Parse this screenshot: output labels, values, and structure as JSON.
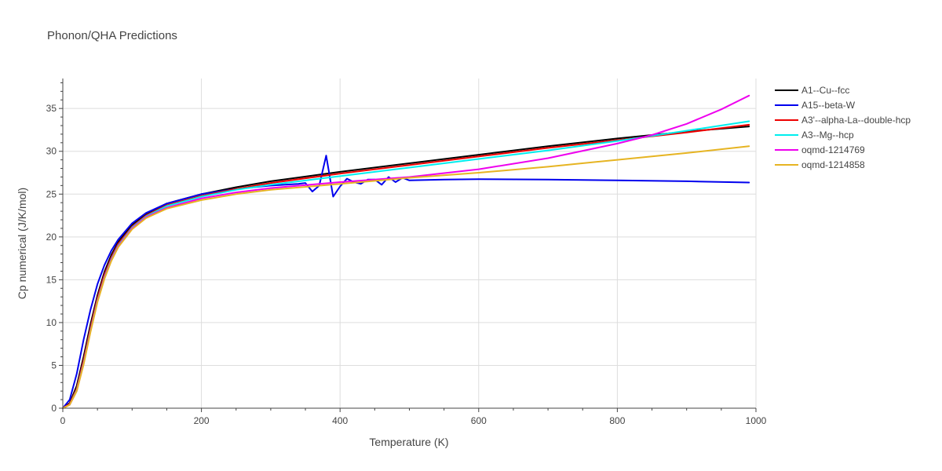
{
  "chart_data": {
    "type": "line",
    "title": "Phonon/QHA Predictions",
    "xlabel": "Temperature (K)",
    "ylabel": "Cp numerical (J/K/mol)",
    "xlim": [
      0,
      1000
    ],
    "ylim": [
      0,
      38.5
    ],
    "xticks": [
      0,
      200,
      400,
      600,
      800,
      1000
    ],
    "yticks": [
      0,
      5,
      10,
      15,
      20,
      25,
      30,
      35
    ],
    "grid": true,
    "legend_position": "right",
    "series": [
      {
        "name": "A1--Cu--fcc",
        "color": "#000000",
        "points": [
          [
            0,
            0
          ],
          [
            10,
            0.6
          ],
          [
            20,
            2.6
          ],
          [
            30,
            6.0
          ],
          [
            40,
            9.8
          ],
          [
            50,
            13.2
          ],
          [
            60,
            15.9
          ],
          [
            70,
            17.9
          ],
          [
            80,
            19.4
          ],
          [
            100,
            21.4
          ],
          [
            120,
            22.7
          ],
          [
            150,
            23.9
          ],
          [
            200,
            25.0
          ],
          [
            250,
            25.8
          ],
          [
            300,
            26.5
          ],
          [
            400,
            27.6
          ],
          [
            500,
            28.6
          ],
          [
            600,
            29.6
          ],
          [
            700,
            30.6
          ],
          [
            800,
            31.5
          ],
          [
            900,
            32.3
          ],
          [
            990,
            32.9
          ]
        ]
      },
      {
        "name": "A15--beta-W",
        "color": "#0000ee",
        "points": [
          [
            0,
            0
          ],
          [
            10,
            1.0
          ],
          [
            20,
            4.0
          ],
          [
            30,
            8.0
          ],
          [
            40,
            11.5
          ],
          [
            50,
            14.5
          ],
          [
            60,
            16.7
          ],
          [
            70,
            18.4
          ],
          [
            80,
            19.7
          ],
          [
            100,
            21.6
          ],
          [
            120,
            22.8
          ],
          [
            150,
            23.9
          ],
          [
            200,
            25.0
          ],
          [
            250,
            25.6
          ],
          [
            300,
            26.0
          ],
          [
            340,
            26.2
          ],
          [
            350,
            26.3
          ],
          [
            360,
            25.3
          ],
          [
            370,
            26.0
          ],
          [
            380,
            29.5
          ],
          [
            390,
            24.7
          ],
          [
            400,
            25.9
          ],
          [
            410,
            26.8
          ],
          [
            420,
            26.4
          ],
          [
            430,
            26.2
          ],
          [
            440,
            26.7
          ],
          [
            450,
            26.7
          ],
          [
            460,
            26.1
          ],
          [
            470,
            27.0
          ],
          [
            480,
            26.4
          ],
          [
            490,
            26.9
          ],
          [
            500,
            26.6
          ],
          [
            550,
            26.7
          ],
          [
            600,
            26.75
          ],
          [
            700,
            26.7
          ],
          [
            800,
            26.6
          ],
          [
            900,
            26.5
          ],
          [
            990,
            26.35
          ]
        ]
      },
      {
        "name": "A3'--alpha-La--double-hcp",
        "color": "#ee0000",
        "points": [
          [
            0,
            0
          ],
          [
            10,
            0.5
          ],
          [
            20,
            2.3
          ],
          [
            30,
            5.6
          ],
          [
            40,
            9.4
          ],
          [
            50,
            12.9
          ],
          [
            60,
            15.6
          ],
          [
            70,
            17.6
          ],
          [
            80,
            19.2
          ],
          [
            100,
            21.2
          ],
          [
            120,
            22.5
          ],
          [
            150,
            23.7
          ],
          [
            200,
            24.8
          ],
          [
            250,
            25.6
          ],
          [
            300,
            26.3
          ],
          [
            400,
            27.4
          ],
          [
            500,
            28.4
          ],
          [
            600,
            29.4
          ],
          [
            700,
            30.4
          ],
          [
            800,
            31.3
          ],
          [
            900,
            32.2
          ],
          [
            990,
            33.1
          ]
        ]
      },
      {
        "name": "A3--Mg--hcp",
        "color": "#00eeee",
        "points": [
          [
            0,
            0
          ],
          [
            10,
            0.4
          ],
          [
            20,
            2.1
          ],
          [
            30,
            5.3
          ],
          [
            40,
            9.1
          ],
          [
            50,
            12.6
          ],
          [
            60,
            15.3
          ],
          [
            70,
            17.4
          ],
          [
            80,
            19.0
          ],
          [
            100,
            21.1
          ],
          [
            120,
            22.4
          ],
          [
            150,
            23.6
          ],
          [
            200,
            24.7
          ],
          [
            250,
            25.5
          ],
          [
            300,
            26.1
          ],
          [
            400,
            27.1
          ],
          [
            500,
            28.1
          ],
          [
            600,
            29.1
          ],
          [
            700,
            30.1
          ],
          [
            800,
            31.2
          ],
          [
            900,
            32.4
          ],
          [
            990,
            33.5
          ]
        ]
      },
      {
        "name": "oqmd-1214769",
        "color": "#ee00ee",
        "points": [
          [
            0,
            0
          ],
          [
            10,
            0.4
          ],
          [
            20,
            2.0
          ],
          [
            30,
            5.2
          ],
          [
            40,
            9.0
          ],
          [
            50,
            12.5
          ],
          [
            60,
            15.2
          ],
          [
            70,
            17.3
          ],
          [
            80,
            18.9
          ],
          [
            100,
            21.0
          ],
          [
            120,
            22.3
          ],
          [
            150,
            23.4
          ],
          [
            200,
            24.5
          ],
          [
            250,
            25.2
          ],
          [
            300,
            25.7
          ],
          [
            400,
            26.4
          ],
          [
            500,
            27.0
          ],
          [
            600,
            27.9
          ],
          [
            700,
            29.2
          ],
          [
            800,
            30.9
          ],
          [
            850,
            31.9
          ],
          [
            900,
            33.2
          ],
          [
            950,
            34.9
          ],
          [
            990,
            36.5
          ]
        ]
      },
      {
        "name": "oqmd-1214858",
        "color": "#e6b422",
        "points": [
          [
            0,
            0
          ],
          [
            10,
            0.4
          ],
          [
            20,
            2.0
          ],
          [
            30,
            5.1
          ],
          [
            40,
            8.9
          ],
          [
            50,
            12.4
          ],
          [
            60,
            15.1
          ],
          [
            70,
            17.2
          ],
          [
            80,
            18.8
          ],
          [
            100,
            20.9
          ],
          [
            120,
            22.2
          ],
          [
            150,
            23.3
          ],
          [
            200,
            24.3
          ],
          [
            250,
            25.0
          ],
          [
            300,
            25.5
          ],
          [
            400,
            26.2
          ],
          [
            500,
            26.9
          ],
          [
            600,
            27.5
          ],
          [
            700,
            28.2
          ],
          [
            800,
            29.0
          ],
          [
            900,
            29.8
          ],
          [
            990,
            30.6
          ]
        ]
      }
    ]
  }
}
